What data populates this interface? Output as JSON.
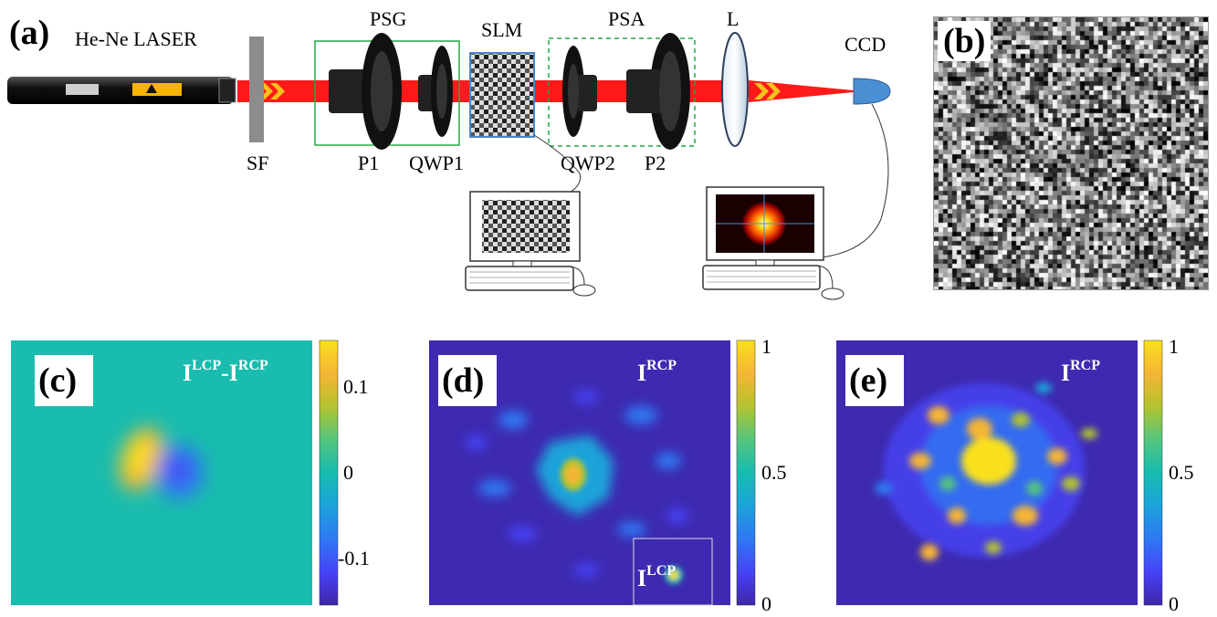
{
  "panel_a": {
    "letter": "(a)",
    "laser_label": "He-Ne LASER",
    "labels": {
      "psg": "PSG",
      "slm": "SLM",
      "psa": "PSA",
      "lens": "L",
      "ccd": "CCD",
      "sf": "SF",
      "p1": "P1",
      "qwp1": "QWP1",
      "qwp2": "QWP2",
      "p2": "P2"
    },
    "colors": {
      "beam": "#ff1a1a",
      "psg_box": "#22aa44",
      "psa_box": "#22aa44",
      "slm_border": "#4a86c5",
      "ccd": "#4a8fd4"
    }
  },
  "panel_b": {
    "letter": "(b)"
  },
  "panel_c": {
    "letter": "(c)",
    "title_main": "I",
    "title_sup1": "LCP",
    "title_mid": "-I",
    "title_sup2": "RCP",
    "colorbar_ticks": [
      "0.1",
      "0",
      "-0.1"
    ]
  },
  "panel_d": {
    "letter": "(d)",
    "title_main": "I",
    "title_sup": "RCP",
    "inset_main": "I",
    "inset_sup": "LCP",
    "colorbar_ticks": [
      "1",
      "0.5",
      "0"
    ]
  },
  "panel_e": {
    "letter": "(e)",
    "title_main": "I",
    "title_sup": "RCP",
    "colorbar_ticks": [
      "1",
      "0.5",
      "0"
    ]
  },
  "colormap": [
    "#3e26a8",
    "#4743f8",
    "#2f78f3",
    "#1ca3da",
    "#17bcb0",
    "#54c57e",
    "#b3c32f",
    "#f5b535",
    "#f9e01e"
  ]
}
